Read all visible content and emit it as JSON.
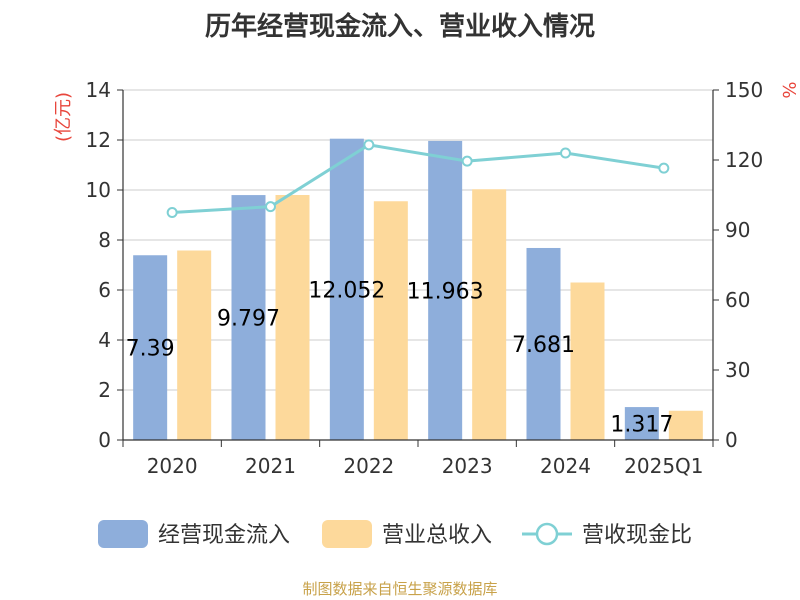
{
  "title": "历年经营现金流入、营业收入情况",
  "source": "制图数据来自恒生聚源数据库",
  "colors": {
    "cash_inflow": "#8eaedb",
    "revenue": "#fdd99b",
    "ratio": "#7fd0d4",
    "axis": "#333333",
    "grid": "#cccccc",
    "unit": "#e8463c"
  },
  "chart_data": {
    "type": "bar",
    "title": "历年经营现金流入、营业收入情况",
    "categories": [
      "2020",
      "2021",
      "2022",
      "2023",
      "2024",
      "2025Q1"
    ],
    "left_axis": {
      "label": "(亿元)",
      "min": 0,
      "max": 14,
      "ticks": [
        "0",
        "2",
        "4",
        "6",
        "8",
        "10",
        "12",
        "14"
      ]
    },
    "right_axis": {
      "label": "%",
      "min": 0,
      "max": 150,
      "ticks": [
        "0",
        "30",
        "60",
        "90",
        "120",
        "150"
      ]
    },
    "series": [
      {
        "name": "经营现金流入",
        "kind": "bar",
        "axis": "left",
        "values": [
          7.39,
          9.797,
          12.052,
          11.963,
          7.681,
          1.317
        ],
        "labels": [
          "7.39",
          "9.797",
          "12.052",
          "11.963",
          "7.681",
          "1.317"
        ]
      },
      {
        "name": "营业总收入",
        "kind": "bar",
        "axis": "left",
        "values": [
          7.58,
          9.8,
          9.55,
          10.03,
          6.3,
          1.17
        ]
      },
      {
        "name": "营收现金比",
        "kind": "line",
        "axis": "right",
        "values": [
          97.5,
          100.0,
          126.5,
          119.5,
          123.0,
          116.5
        ]
      }
    ],
    "legend_position": "bottom",
    "grid": true
  }
}
